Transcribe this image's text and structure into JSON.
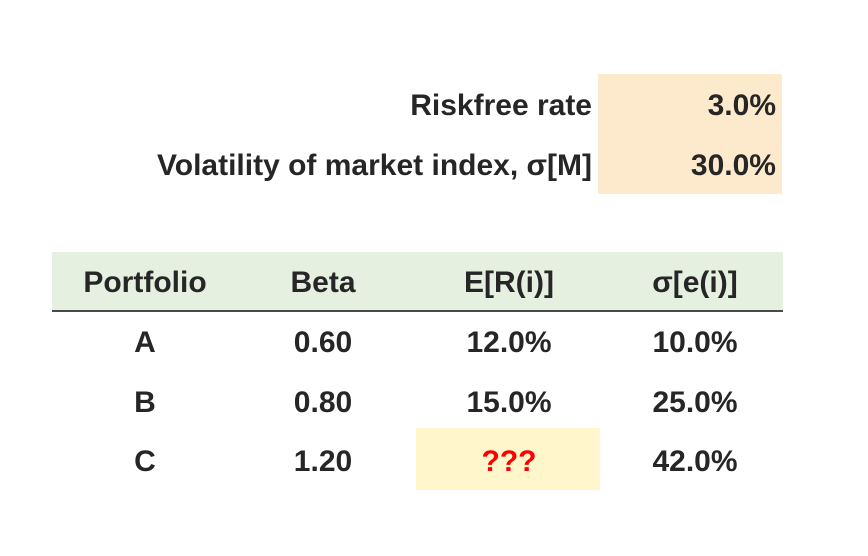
{
  "parameters": [
    {
      "label": "Riskfree rate",
      "value": "3.0%"
    },
    {
      "label": "Volatility of market index, σ[M]",
      "value": "30.0%"
    }
  ],
  "table": {
    "columns": [
      "Portfolio",
      "Beta",
      "E[R(i)]",
      "σ[e(i)]"
    ],
    "rows": [
      {
        "portfolio": "A",
        "beta": "0.60",
        "expected_return": "12.0%",
        "residual_sd": "10.0%"
      },
      {
        "portfolio": "B",
        "beta": "0.80",
        "expected_return": "15.0%",
        "residual_sd": "25.0%"
      },
      {
        "portfolio": "C",
        "beta": "1.20",
        "expected_return": "???",
        "residual_sd": "42.0%"
      }
    ]
  },
  "colors": {
    "parameter_fill": "#fde9cc",
    "header_fill": "#e6f0e0",
    "unknown_fill": "#fff6cc",
    "unknown_text": "#ff0000",
    "text": "#262626"
  }
}
